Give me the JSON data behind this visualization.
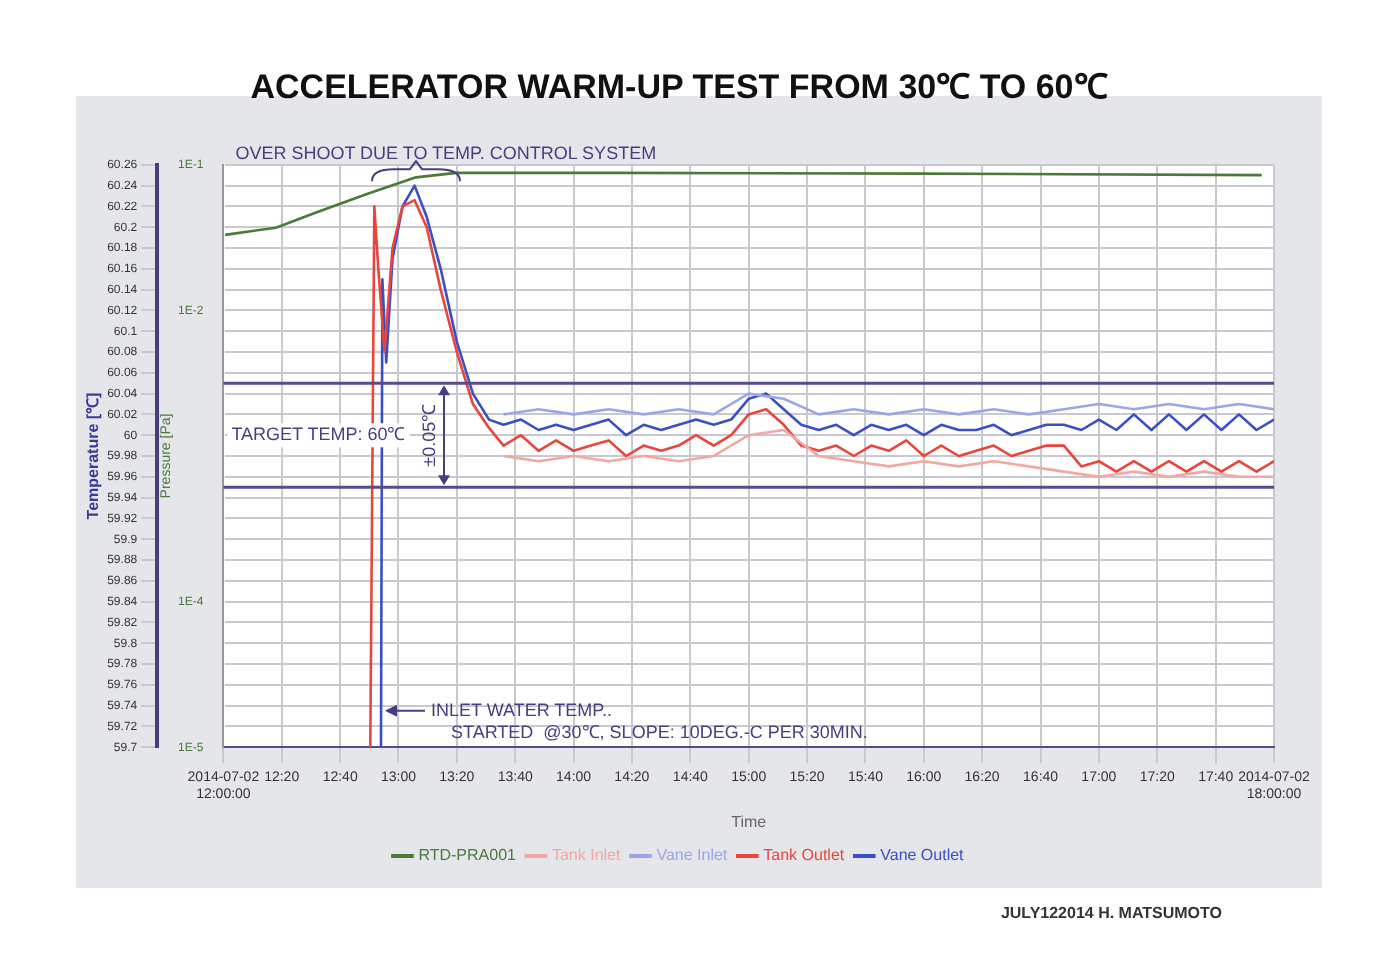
{
  "chart_data": {
    "type": "line",
    "title": "ACCELERATOR WARM-UP TEST FROM 30℃ TO 60℃",
    "xlabel": "Time",
    "ylabel": "Temperature [℃]",
    "y2label": "Pressure [Pa]",
    "xlim": [
      12,
      18
    ],
    "xticks": [
      {
        "value": 12,
        "label": "2014-07-02 12:00:00"
      },
      {
        "value": 12.333,
        "label": "12:20"
      },
      {
        "value": 12.667,
        "label": "12:40"
      },
      {
        "value": 13,
        "label": "13:00"
      },
      {
        "value": 13.333,
        "label": "13:20"
      },
      {
        "value": 13.667,
        "label": "13:40"
      },
      {
        "value": 14,
        "label": "14:00"
      },
      {
        "value": 14.333,
        "label": "14:20"
      },
      {
        "value": 14.667,
        "label": "14:40"
      },
      {
        "value": 15,
        "label": "15:00"
      },
      {
        "value": 15.333,
        "label": "15:20"
      },
      {
        "value": 15.667,
        "label": "15:40"
      },
      {
        "value": 16,
        "label": "16:00"
      },
      {
        "value": 16.333,
        "label": "16:20"
      },
      {
        "value": 16.667,
        "label": "16:40"
      },
      {
        "value": 17,
        "label": "17:00"
      },
      {
        "value": 17.333,
        "label": "17:20"
      },
      {
        "value": 17.667,
        "label": "17:40"
      },
      {
        "value": 18,
        "label": "2014-07-02 18:00:00"
      }
    ],
    "ylim": [
      59.7,
      60.26
    ],
    "yticks": [
      59.7,
      59.72,
      59.74,
      59.76,
      59.78,
      59.8,
      59.82,
      59.84,
      59.86,
      59.88,
      59.9,
      59.92,
      59.94,
      59.96,
      59.98,
      60,
      60.02,
      60.04,
      60.06,
      60.08,
      60.1,
      60.12,
      60.14,
      60.16,
      60.18,
      60.2,
      60.22,
      60.24,
      60.26
    ],
    "y2lim": [
      1e-05,
      0.1
    ],
    "y2ticks": [
      {
        "value": 0.1,
        "label": "1E-1"
      },
      {
        "value": 0.01,
        "label": "1E-2"
      },
      {
        "value": 0.001,
        "label": null
      },
      {
        "value": 0.0001,
        "label": "1E-4"
      },
      {
        "value": 1e-05,
        "label": "1E-5"
      }
    ],
    "log": "y2",
    "grid": true,
    "legend": "bottom",
    "line_style": "solid",
    "marker": "none",
    "ref_lines": [
      {
        "axis": "y",
        "value": 60.05,
        "color": "#5b4a8b"
      },
      {
        "axis": "y",
        "value": 59.95,
        "color": "#5b4a8b"
      }
    ],
    "annotations": [
      {
        "text": "OVER SHOOT DUE TO TEMP. CONTROL SYSTEM",
        "x": 13.1,
        "y": 60.25
      },
      "TARGET TEMP: 60℃",
      "±0.05℃",
      {
        "text": "INLET WATER TEMP..\nSTARTED  @30℃, SLOPE: 10DEG.-C PER 30MIN.",
        "x": 12.9,
        "y": 59.735
      },
      "JULY122014 H. MATSUMOTO"
    ],
    "series": [
      {
        "name": "RTD-PRA001",
        "color": "#4a7a3a",
        "axis": "y2",
        "x": [
          12.01,
          12.3,
          12.53,
          12.82,
          13.1,
          13.33,
          14.25,
          16,
          17.93
        ],
        "values": [
          0.033,
          0.037,
          0.047,
          0.063,
          0.082,
          0.088,
          0.088,
          0.087,
          0.085
        ]
      },
      {
        "name": "Tank Inlet",
        "color": "#f4a6a0",
        "x": [
          13.6,
          13.8,
          14,
          14.2,
          14.4,
          14.6,
          14.8,
          15,
          15.2,
          15.4,
          15.6,
          15.8,
          16,
          16.2,
          16.4,
          16.6,
          16.8,
          17,
          17.2,
          17.4,
          17.6,
          17.8,
          18
        ],
        "values": [
          59.98,
          59.975,
          59.98,
          59.975,
          59.98,
          59.975,
          59.98,
          60,
          60.005,
          59.98,
          59.975,
          59.97,
          59.975,
          59.97,
          59.975,
          59.97,
          59.965,
          59.96,
          59.965,
          59.96,
          59.965,
          59.96,
          59.96
        ]
      },
      {
        "name": "Vane Inlet",
        "color": "#9aa6e8",
        "x": [
          13.6,
          13.8,
          14,
          14.2,
          14.4,
          14.6,
          14.8,
          15,
          15.2,
          15.4,
          15.6,
          15.8,
          16,
          16.2,
          16.4,
          16.6,
          16.8,
          17,
          17.2,
          17.4,
          17.6,
          17.8,
          18
        ],
        "values": [
          60.02,
          60.025,
          60.02,
          60.025,
          60.02,
          60.025,
          60.02,
          60.04,
          60.035,
          60.02,
          60.025,
          60.02,
          60.025,
          60.02,
          60.025,
          60.02,
          60.025,
          60.03,
          60.025,
          60.03,
          60.025,
          60.03,
          60.025
        ]
      },
      {
        "name": "Tank Outlet",
        "color": "#e8463c",
        "x": [
          12.839,
          12.862,
          12.885,
          12.92,
          12.966,
          13.023,
          13.092,
          13.161,
          13.241,
          13.333,
          13.425,
          13.517,
          13.6,
          13.7,
          13.8,
          13.9,
          14,
          14.1,
          14.2,
          14.3,
          14.4,
          14.5,
          14.6,
          14.7,
          14.8,
          14.9,
          15,
          15.1,
          15.2,
          15.3,
          15.4,
          15.5,
          15.6,
          15.7,
          15.8,
          15.9,
          16,
          16.1,
          16.2,
          16.3,
          16.4,
          16.5,
          16.6,
          16.7,
          16.8,
          16.9,
          17,
          17.1,
          17.2,
          17.3,
          17.4,
          17.5,
          17.6,
          17.7,
          17.8,
          17.9,
          18
        ],
        "values": [
          59.7,
          60.22,
          60.16,
          60.08,
          60.18,
          60.22,
          60.226,
          60.2,
          60.14,
          60.08,
          60.03,
          60.007,
          59.99,
          60,
          59.985,
          59.995,
          59.985,
          59.99,
          59.995,
          59.98,
          59.99,
          59.985,
          59.99,
          60,
          59.99,
          60,
          60.02,
          60.025,
          60.01,
          59.99,
          59.985,
          59.99,
          59.98,
          59.99,
          59.985,
          59.995,
          59.98,
          59.99,
          59.98,
          59.985,
          59.99,
          59.98,
          59.985,
          59.99,
          59.99,
          59.97,
          59.975,
          59.965,
          59.975,
          59.965,
          59.975,
          59.965,
          59.975,
          59.965,
          59.975,
          59.965,
          59.975
        ]
      },
      {
        "name": "Vane Outlet",
        "color": "#3a4fc4",
        "x": [
          12.9,
          12.908,
          12.93,
          12.966,
          13.023,
          13.092,
          13.161,
          13.241,
          13.333,
          13.425,
          13.517,
          13.6,
          13.7,
          13.8,
          13.9,
          14,
          14.1,
          14.2,
          14.3,
          14.4,
          14.5,
          14.6,
          14.7,
          14.8,
          14.9,
          15,
          15.1,
          15.2,
          15.3,
          15.4,
          15.5,
          15.6,
          15.7,
          15.8,
          15.9,
          16,
          16.1,
          16.2,
          16.3,
          16.4,
          16.5,
          16.6,
          16.7,
          16.8,
          16.9,
          17,
          17.1,
          17.2,
          17.3,
          17.4,
          17.5,
          17.6,
          17.7,
          17.8,
          17.9,
          18
        ],
        "values": [
          59.7,
          60.15,
          60.07,
          60.17,
          60.22,
          60.24,
          60.21,
          60.16,
          60.09,
          60.04,
          60.015,
          60.01,
          60.015,
          60.005,
          60.01,
          60.005,
          60.01,
          60.015,
          60,
          60.01,
          60.005,
          60.01,
          60.015,
          60.01,
          60.015,
          60.035,
          60.04,
          60.025,
          60.01,
          60.005,
          60.01,
          60,
          60.01,
          60.005,
          60.01,
          60,
          60.01,
          60.005,
          60.005,
          60.01,
          60,
          60.005,
          60.01,
          60.01,
          60.005,
          60.015,
          60.005,
          60.02,
          60.005,
          60.02,
          60.005,
          60.02,
          60.005,
          60.02,
          60.005,
          60.015
        ]
      }
    ]
  }
}
